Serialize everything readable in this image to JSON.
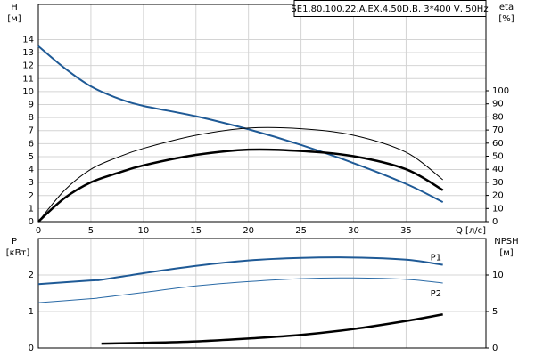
{
  "chart_data": [
    {
      "type": "line",
      "title": "SE1.80.100.22.A.EX.4.50D.B, 3*400 V, 50Hz",
      "ylabel": "H",
      "yunit": "[м]",
      "y2label": "eta",
      "y2unit": "[%]",
      "xlabel": "Q [л/с]",
      "x": [
        0,
        2.5,
        5,
        7.5,
        10,
        15,
        20,
        25,
        30,
        35,
        38.5
      ],
      "xlim": [
        0,
        42.6
      ],
      "xticks": [
        0,
        5,
        10,
        15,
        20,
        25,
        30,
        35
      ],
      "ylim": [
        0,
        16.7
      ],
      "yticks": [
        0,
        1,
        2,
        3,
        4,
        5,
        6,
        7,
        8,
        9,
        10,
        11,
        12,
        13,
        14
      ],
      "y2lim": [
        0,
        166
      ],
      "y2ticks": [
        0,
        10,
        20,
        30,
        40,
        50,
        60,
        70,
        80,
        90,
        100
      ],
      "grid": true,
      "series": [
        {
          "color": "#1f5a96",
          "width": 2,
          "values": [
            13.5,
            11.8,
            10.4,
            9.5,
            8.9,
            8.1,
            7.1,
            5.9,
            4.5,
            2.9,
            1.5
          ]
        },
        {
          "color": "#000000",
          "width": 1,
          "axis": "y2",
          "values": [
            0,
            24,
            40,
            49,
            56,
            66,
            71.5,
            71,
            66,
            53,
            32
          ]
        },
        {
          "color": "#000000",
          "width": 2.5,
          "axis": "y2",
          "values": [
            0,
            18,
            30,
            37,
            43,
            51,
            55,
            54,
            50,
            40,
            24
          ]
        }
      ]
    },
    {
      "type": "line",
      "ylabel": "P",
      "yunit": "[кВт]",
      "y2label": "NPSH",
      "y2unit": "[м]",
      "x": [
        0,
        5,
        6,
        10,
        15,
        20,
        25,
        30,
        35,
        38.5
      ],
      "xlim": [
        0,
        42.6
      ],
      "xticks": [
        0,
        5,
        10,
        15,
        20,
        25,
        30,
        35
      ],
      "ylim": [
        0,
        3
      ],
      "yticks": [
        0,
        1,
        2
      ],
      "y2lim": [
        0,
        15
      ],
      "y2ticks": [
        0,
        5,
        10
      ],
      "grid": true,
      "series": [
        {
          "name": "P1",
          "color": "#1f5a96",
          "width": 2,
          "values": [
            1.75,
            1.85,
            1.87,
            2.05,
            2.25,
            2.4,
            2.47,
            2.48,
            2.42,
            2.28
          ]
        },
        {
          "name": "P2",
          "color": "#2a6aa6",
          "width": 1,
          "values": [
            1.24,
            1.35,
            1.38,
            1.52,
            1.7,
            1.82,
            1.9,
            1.92,
            1.88,
            1.78
          ]
        },
        {
          "color": "#000000",
          "width": 2.5,
          "axis": "y2",
          "values": [
            null,
            null,
            0.6,
            0.7,
            0.9,
            1.3,
            1.8,
            2.6,
            3.7,
            4.6
          ]
        }
      ]
    }
  ]
}
